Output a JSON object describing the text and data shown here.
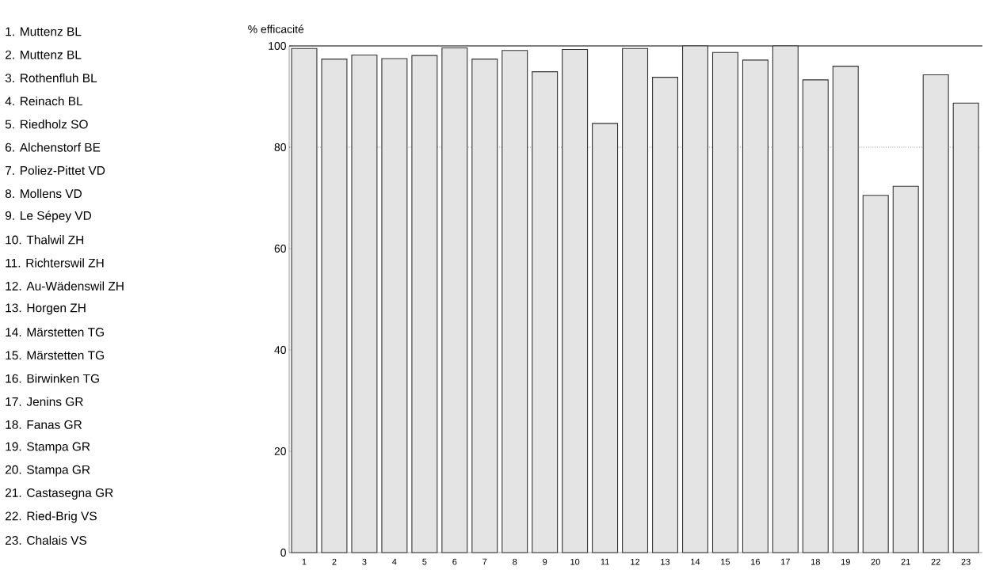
{
  "chart_data": {
    "type": "bar",
    "ylabel": "% efficacité",
    "categories": [
      "1",
      "2",
      "3",
      "4",
      "5",
      "6",
      "7",
      "8",
      "9",
      "10",
      "11",
      "12",
      "13",
      "14",
      "15",
      "16",
      "17",
      "18",
      "19",
      "20",
      "21",
      "22",
      "23"
    ],
    "values": [
      99.5,
      97.4,
      98.2,
      97.5,
      98.1,
      99.6,
      97.4,
      99.1,
      94.9,
      99.3,
      84.7,
      99.5,
      93.8,
      100,
      98.7,
      97.2,
      100,
      93.3,
      96.0,
      70.5,
      72.3,
      94.3,
      88.7
    ],
    "color": "#e4e4e4",
    "ylim": [
      0,
      100
    ],
    "yticks": [
      0,
      20,
      40,
      60,
      80,
      100
    ],
    "ref_lines": [
      {
        "axis": "y",
        "value": 80,
        "line_style": "dotted",
        "color": "#555555"
      }
    ],
    "annotations": [
      "1. Muttenz BL",
      "2. Muttenz BL",
      "3. Rothenfluh BL",
      "4. Reinach BL",
      "5. Riedholz SO",
      "6. Alchenstorf BE",
      "7. Poliez-Pittet VD",
      "8. Mollens VD",
      "9. Le Sépey VD",
      "10. Thalwil ZH",
      "11. Richterswil ZH",
      "12. Au-Wädenswil ZH",
      "13. Horgen ZH",
      "14. Märstetten TG",
      "15. Märstetten TG",
      "16. Birwinken TG",
      "17. Jenins GR",
      "18. Fanas GR",
      "19. Stampa GR",
      "20. Stampa GR",
      "21. Castasegna GR",
      "22. Ried-Brig VS",
      "23. Chalais VS"
    ]
  }
}
